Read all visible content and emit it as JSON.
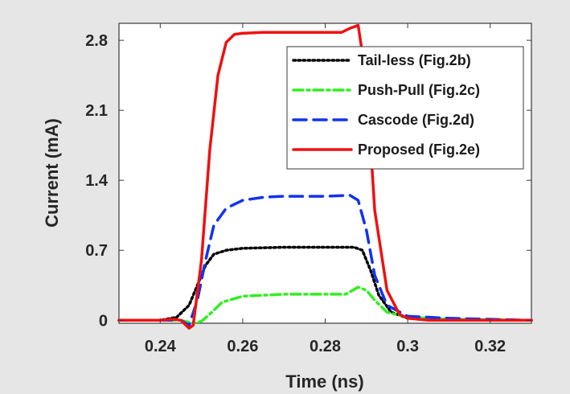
{
  "chart_data": {
    "type": "line",
    "xlabel": "Time (ns)",
    "ylabel": "Current (mA)",
    "xlim": [
      0.23,
      0.33
    ],
    "ylim": [
      -0.03,
      2.97
    ],
    "xticks": [
      0.24,
      0.26,
      0.28,
      0.3,
      0.32
    ],
    "xtick_labels": [
      "0.24",
      "0.26",
      "0.28",
      "0.3",
      "0.32"
    ],
    "yticks": [
      0,
      0.7,
      1.4,
      2.1,
      2.8
    ],
    "ytick_labels": [
      "0",
      "0.7",
      "1.4",
      "2.1",
      "2.8"
    ],
    "grid": false,
    "legend_position": "top-right",
    "series": [
      {
        "name": "Tail-less (Fig.2b)",
        "color": "#000000",
        "style": "dotted",
        "x": [
          0.23,
          0.24,
          0.244,
          0.247,
          0.249,
          0.251,
          0.253,
          0.256,
          0.26,
          0.27,
          0.28,
          0.287,
          0.289,
          0.291,
          0.293,
          0.296,
          0.3,
          0.305,
          0.31,
          0.33
        ],
        "y": [
          0,
          0,
          0.03,
          0.15,
          0.35,
          0.55,
          0.66,
          0.7,
          0.72,
          0.73,
          0.73,
          0.73,
          0.7,
          0.5,
          0.25,
          0.08,
          0.02,
          0.01,
          0.0,
          0.0
        ]
      },
      {
        "name": "Push-Pull (Fig.2c)",
        "color": "#33ee22",
        "style": "dashdot",
        "x": [
          0.23,
          0.24,
          0.245,
          0.248,
          0.25,
          0.252,
          0.255,
          0.26,
          0.27,
          0.28,
          0.285,
          0.288,
          0.29,
          0.292,
          0.295,
          0.3,
          0.305,
          0.31,
          0.33
        ],
        "y": [
          0,
          0,
          0,
          -0.03,
          -0.01,
          0.06,
          0.18,
          0.24,
          0.26,
          0.26,
          0.26,
          0.33,
          0.3,
          0.2,
          0.08,
          0.03,
          0.02,
          0.01,
          0.0
        ]
      },
      {
        "name": "Cascode (Fig.2d)",
        "color": "#1133ee",
        "style": "dashed",
        "x": [
          0.23,
          0.24,
          0.245,
          0.247,
          0.249,
          0.251,
          0.253,
          0.256,
          0.26,
          0.265,
          0.27,
          0.28,
          0.286,
          0.288,
          0.29,
          0.292,
          0.295,
          0.3,
          0.305,
          0.31,
          0.33
        ],
        "y": [
          0,
          0,
          0.0,
          -0.05,
          0.2,
          0.6,
          0.95,
          1.12,
          1.2,
          1.23,
          1.24,
          1.24,
          1.25,
          1.2,
          0.9,
          0.45,
          0.15,
          0.04,
          0.03,
          0.02,
          0.0
        ]
      },
      {
        "name": "Proposed (Fig.2e)",
        "color": "#ee1111",
        "style": "solid",
        "x": [
          0.23,
          0.24,
          0.243,
          0.245,
          0.247,
          0.248,
          0.25,
          0.252,
          0.254,
          0.256,
          0.258,
          0.26,
          0.265,
          0.27,
          0.28,
          0.284,
          0.286,
          0.288,
          0.29,
          0.292,
          0.295,
          0.298,
          0.3,
          0.305,
          0.31,
          0.33
        ],
        "y": [
          0,
          0,
          0.01,
          0.0,
          -0.08,
          -0.05,
          0.6,
          1.7,
          2.45,
          2.78,
          2.86,
          2.87,
          2.88,
          2.88,
          2.88,
          2.88,
          2.92,
          2.95,
          2.4,
          1.1,
          0.3,
          0.06,
          0.02,
          0.0,
          0.0,
          0.0
        ]
      }
    ]
  }
}
